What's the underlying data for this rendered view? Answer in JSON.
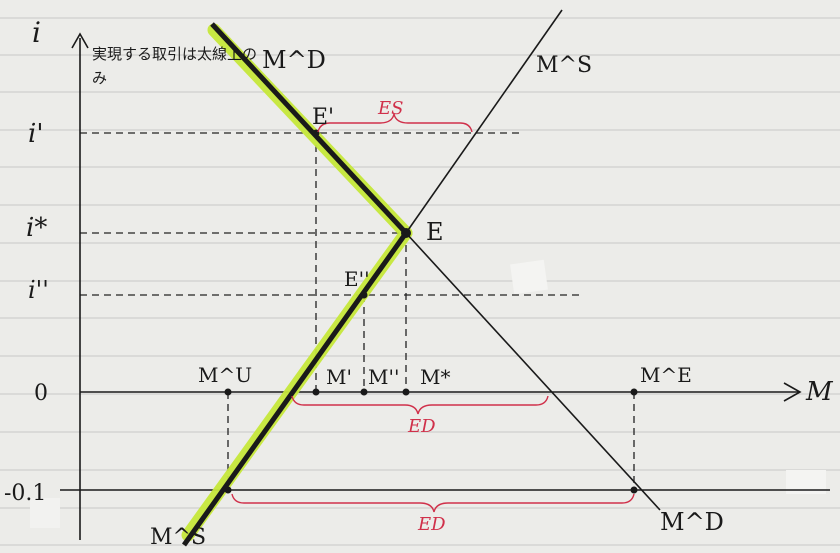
{
  "axes": {
    "y_axis_label": "i",
    "x_axis_label": "M",
    "y_ticks": [
      "i'",
      "i*",
      "i''",
      "0",
      "-0.1"
    ]
  },
  "curves": {
    "demand_top": "M^D",
    "demand_bottom": "M^D",
    "supply_top": "M^S",
    "supply_bottom": "M^S"
  },
  "points": {
    "e_prime": "E'",
    "e": "E",
    "e_double": "E''",
    "m_u": "M^U",
    "m_prime": "M'",
    "m_double": "M''",
    "m_star": "M*",
    "m_e": "M^E"
  },
  "annotation": "実現する取引は太線上のみ",
  "brackets": {
    "es": "ES",
    "ed_top": "ED",
    "ed_bottom": "ED"
  },
  "colors": {
    "paper": "#e9e9e6",
    "ink": "#1a1a1a",
    "highlight": "#c6e83a",
    "bracket_red": "#d0304a",
    "ruled_line": "#c8c8c8"
  }
}
